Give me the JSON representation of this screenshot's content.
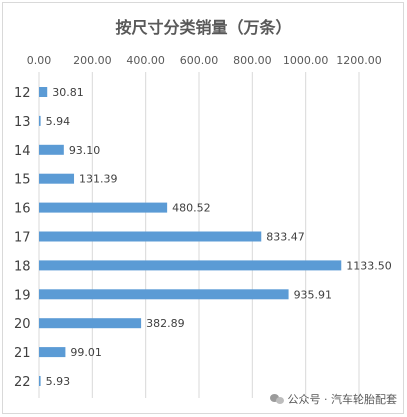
{
  "chart_data": {
    "type": "bar",
    "orientation": "horizontal",
    "title": "按尺寸分类销量（万条）",
    "categories": [
      "12",
      "13",
      "14",
      "15",
      "16",
      "17",
      "18",
      "19",
      "20",
      "21",
      "22"
    ],
    "values": [
      30.81,
      5.94,
      93.1,
      131.39,
      480.52,
      833.47,
      1133.5,
      935.91,
      382.89,
      99.01,
      5.93
    ],
    "value_labels": [
      "30.81",
      "5.94",
      "93.10",
      "131.39",
      "480.52",
      "833.47",
      "1133.50",
      "935.91",
      "382.89",
      "99.01",
      "5.93"
    ],
    "x_ticks": [
      "0.00",
      "200.00",
      "400.00",
      "600.00",
      "800.00",
      "1000.00",
      "1200.00"
    ],
    "xlim": [
      0,
      1200
    ],
    "xaxis_position": "top",
    "grid": true,
    "bar_color": "#5b9bd5"
  },
  "watermark": {
    "text": "公众号 · 汽车轮胎配套",
    "icon": "wechat-icon"
  }
}
